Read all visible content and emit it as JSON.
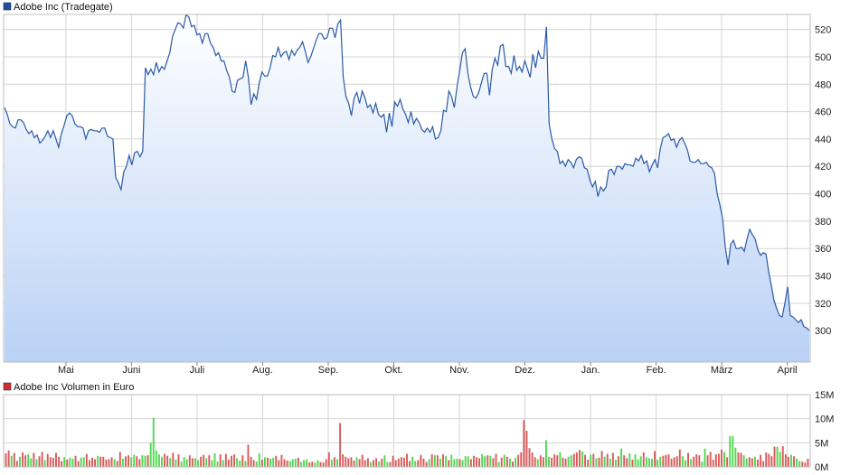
{
  "colors": {
    "price_line": "#2a5aa8",
    "price_fill_top": "#ffffff",
    "price_fill_bottom": "#b9d1f6",
    "price_legend": "#1f4ea6",
    "volume_legend": "#d03030",
    "volume_down": "#d85a5a",
    "volume_up": "#4fd84f",
    "grid": "#d4d4d4",
    "frame": "#bdbdbd"
  },
  "chart_data": [
    {
      "type": "area",
      "legend": "Adobe Inc (Tradegate)",
      "legend_position": "top-left",
      "grid": true,
      "x_ticks": [
        "Mai",
        "Juni",
        "Juli",
        "Aug.",
        "Sep.",
        "Okt.",
        "Nov.",
        "Dez.",
        "Jan.",
        "Feb.",
        "März",
        "April"
      ],
      "y_ticks": [
        300,
        320,
        340,
        360,
        380,
        400,
        420,
        440,
        460,
        480,
        500,
        520
      ],
      "ylim": [
        277,
        531
      ],
      "series": [
        {
          "values": [
            463,
            458,
            451,
            449,
            448,
            454,
            454,
            452,
            447,
            444,
            446,
            441,
            443,
            437,
            439,
            442,
            446,
            441,
            446,
            440,
            434,
            444,
            450,
            457,
            459,
            457,
            451,
            449,
            449,
            448,
            440,
            446,
            447,
            446,
            446,
            445,
            448,
            448,
            442,
            441,
            440,
            412,
            408,
            403,
            416,
            420,
            428,
            421,
            430,
            431,
            427,
            431,
            492,
            487,
            491,
            487,
            496,
            489,
            493,
            491,
            497,
            503,
            515,
            520,
            525,
            524,
            521,
            531,
            529,
            522,
            523,
            516,
            517,
            510,
            517,
            517,
            510,
            507,
            501,
            503,
            497,
            497,
            490,
            485,
            475,
            474,
            483,
            484,
            485,
            497,
            485,
            465,
            473,
            469,
            481,
            489,
            486,
            486,
            492,
            501,
            500,
            507,
            500,
            503,
            504,
            498,
            505,
            501,
            505,
            507,
            511,
            504,
            496,
            500,
            506,
            512,
            517,
            517,
            513,
            514,
            521,
            521,
            514,
            524,
            527,
            485,
            471,
            466,
            457,
            470,
            474,
            466,
            475,
            470,
            463,
            465,
            459,
            466,
            458,
            456,
            458,
            445,
            459,
            449,
            467,
            464,
            469,
            462,
            458,
            452,
            460,
            451,
            455,
            452,
            447,
            445,
            448,
            445,
            449,
            440,
            441,
            446,
            461,
            460,
            475,
            471,
            463,
            478,
            490,
            503,
            506,
            488,
            478,
            471,
            470,
            474,
            481,
            488,
            488,
            472,
            491,
            499,
            494,
            508,
            509,
            493,
            493,
            488,
            501,
            490,
            493,
            489,
            497,
            491,
            485,
            502,
            492,
            504,
            499,
            499,
            522,
            451,
            440,
            433,
            431,
            422,
            424,
            420,
            425,
            423,
            419,
            425,
            427,
            426,
            419,
            418,
            410,
            405,
            409,
            398,
            405,
            402,
            405,
            417,
            418,
            414,
            420,
            420,
            418,
            422,
            421,
            421,
            420,
            426,
            424,
            428,
            422,
            424,
            416,
            421,
            425,
            419,
            433,
            441,
            442,
            444,
            439,
            440,
            434,
            439,
            441,
            437,
            432,
            424,
            423,
            423,
            425,
            422,
            422,
            423,
            420,
            419,
            415,
            400,
            392,
            382,
            361,
            348,
            363,
            366,
            360,
            360,
            361,
            358,
            367,
            374,
            370,
            367,
            359,
            355,
            357,
            356,
            343,
            333,
            322,
            316,
            311,
            310,
            320,
            332,
            311,
            310,
            308,
            306,
            308,
            303,
            302,
            300
          ]
        }
      ]
    },
    {
      "type": "bar",
      "legend": "Adobe Inc Volumen in Euro",
      "legend_position": "top-left",
      "grid": true,
      "y_ticks": [
        "15M",
        "10M",
        "5M",
        "0M"
      ],
      "y_tick_values": [
        15,
        10,
        5,
        0
      ],
      "ylim": [
        0,
        15
      ],
      "unit": "M",
      "series": [
        {
          "values": [
            2.8,
            3.4,
            2.3,
            2.9,
            1.2,
            2.1,
            3.0,
            2.4,
            2.6,
            1.8,
            2.9,
            1.6,
            2.2,
            3.1,
            1.4,
            2.7,
            2.0,
            1.9,
            2.9,
            2.1,
            1.2,
            2.0,
            1.5,
            1.9,
            1.7,
            2.3,
            1.2,
            1.9,
            2.0,
            2.7,
            1.4,
            1.9,
            1.6,
            2.3,
            2.1,
            2.1,
            1.5,
            1.6,
            2.0,
            1.6,
            1.2,
            3.1,
            1.7,
            2.2,
            2.4,
            2.0,
            2.5,
            2.2,
            1.6,
            2.4,
            2.3,
            2.4,
            5.0,
            10.2,
            3.4,
            2.6,
            2.1,
            2.7,
            2.3,
            1.8,
            2.9,
            1.5,
            2.6,
            1.1,
            2.0,
            1.6,
            2.4,
            1.8,
            1.8,
            1.4,
            2.1,
            2.5,
            1.8,
            2.4,
            1.4,
            2.8,
            1.1,
            2.6,
            1.4,
            2.7,
            1.5,
            2.3,
            2.6,
            1.8,
            1.3,
            2.4,
            1.2,
            4.6,
            2.1,
            1.4,
            1.1,
            2.8,
            1.5,
            2.0,
            1.9,
            1.7,
            1.9,
            2.3,
            1.4,
            2.5,
            1.6,
            1.3,
            1.2,
            1.6,
            1.7,
            1.9,
            1.0,
            1.4,
            1.6,
            0.9,
            1.1,
            0.9,
            1.4,
            1.0,
            0.9,
            1.6,
            3.0,
            1.5,
            2.0,
            1.6,
            9.1,
            2.6,
            2.1,
            1.8,
            2.0,
            1.3,
            2.0,
            1.6,
            2.5,
            1.4,
            1.8,
            1.0,
            1.4,
            1.8,
            1.1,
            1.7,
            2.4,
            1.0,
            1.0,
            2.3,
            1.4,
            1.7,
            2.0,
            1.9,
            2.7,
            1.2,
            2.1,
            1.2,
            1.4,
            2.5,
            1.7,
            1.0,
            1.6,
            2.6,
            2.4,
            2.4,
            1.7,
            2.6,
            2.2,
            1.4,
            2.5,
            1.6,
            1.7,
            1.6,
            1.4,
            2.2,
            2.2,
            1.6,
            2.3,
            2.0,
            1.8,
            2.6,
            2.2,
            2.4,
            2.3,
            1.8,
            2.7,
            1.0,
            1.9,
            2.5,
            2.1,
            1.7,
            1.1,
            1.9,
            2.5,
            3.0,
            9.7,
            7.5,
            3.9,
            3.0,
            2.0,
            1.6,
            2.4,
            2.0,
            5.5,
            2.1,
            1.9,
            2.6,
            2.4,
            3.0,
            1.9,
            1.7,
            2.1,
            2.4,
            2.7,
            3.0,
            3.5,
            3.2,
            2.5,
            1.5,
            2.5,
            2.7,
            1.8,
            1.9,
            3.3,
            2.1,
            2.7,
            1.7,
            2.9,
            1.5,
            2.2,
            3.8,
            2.4,
            1.8,
            2.8,
            1.5,
            2.6,
            1.6,
            2.2,
            3.0,
            2.0,
            1.8,
            1.7,
            3.3,
            1.5,
            2.1,
            2.3,
            2.5,
            2.6,
            1.7,
            2.0,
            2.2,
            3.6,
            2.2,
            1.4,
            2.9,
            1.6,
            2.1,
            2.6,
            2.4,
            1.1,
            3.8,
            2.4,
            3.1,
            1.5,
            2.6,
            2.7,
            3.6,
            3.1,
            2.0,
            6.4,
            6.4,
            4.0,
            3.0,
            2.9,
            2.4,
            1.7,
            2.0,
            1.8,
            2.1,
            1.5,
            2.5,
            1.2,
            3.0,
            2.7,
            2.2,
            4.2,
            4.2,
            3.1,
            4.3,
            2.6,
            2.1,
            2.5,
            2.2,
            1.7,
            1.2,
            1.1,
            0.9,
            1.7
          ],
          "up": [
            0,
            0,
            1,
            0,
            0,
            1,
            0,
            0,
            1,
            1,
            0,
            1,
            0,
            0,
            1,
            0,
            0,
            0,
            0,
            0,
            0,
            1,
            0,
            1,
            1,
            0,
            0,
            1,
            1,
            0,
            0,
            0,
            0,
            1,
            0,
            0,
            0,
            0,
            0,
            1,
            0,
            0,
            1,
            0,
            0,
            1,
            1,
            0,
            0,
            1,
            1,
            0,
            1,
            1,
            1,
            1,
            1,
            0,
            0,
            1,
            0,
            1,
            0,
            1,
            1,
            1,
            0,
            0,
            1,
            1,
            0,
            0,
            1,
            0,
            1,
            1,
            1,
            0,
            1,
            0,
            0,
            0,
            0,
            1,
            1,
            0,
            1,
            0,
            0,
            0,
            1,
            1,
            0,
            1,
            0,
            1,
            1,
            0,
            0,
            0,
            0,
            0,
            1,
            1,
            1,
            0,
            1,
            1,
            1,
            0,
            0,
            1,
            1,
            0,
            0,
            0,
            0,
            1,
            0,
            1,
            0,
            0,
            0,
            0,
            0,
            0,
            1,
            0,
            0,
            0,
            0,
            1,
            0,
            0,
            1,
            0,
            1,
            1,
            0,
            0,
            0,
            0,
            0,
            0,
            0,
            0,
            1,
            1,
            0,
            0,
            0,
            0,
            1,
            0,
            1,
            0,
            1,
            0,
            1,
            0,
            1,
            1,
            1,
            0,
            1,
            1,
            1,
            0,
            0,
            0,
            0,
            1,
            1,
            0,
            1,
            0,
            0,
            1,
            0,
            1,
            0,
            1,
            0,
            1,
            0,
            0,
            0,
            0,
            0,
            0,
            0,
            1,
            0,
            0,
            1,
            1,
            0,
            0,
            0,
            1,
            0,
            0,
            1,
            1,
            0,
            0,
            0,
            1,
            0,
            0,
            1,
            0,
            1,
            0,
            0,
            1,
            0,
            1,
            0,
            1,
            0,
            1,
            0,
            0,
            1,
            0,
            1,
            1,
            1,
            0,
            1,
            1,
            1,
            0,
            1,
            1,
            0,
            0,
            0,
            0,
            0,
            0,
            0,
            1,
            1,
            0,
            1,
            0,
            0,
            0,
            1,
            1,
            0,
            0,
            0,
            0,
            0,
            0,
            1,
            0,
            1,
            1,
            1,
            0,
            0,
            1,
            1,
            0,
            0,
            1,
            0,
            0,
            0,
            0,
            0,
            0,
            0,
            1,
            1,
            0,
            0,
            0,
            1,
            0,
            1,
            1,
            0,
            0,
            0,
            0,
            1,
            0,
            0,
            0
          ]
        }
      ]
    }
  ]
}
